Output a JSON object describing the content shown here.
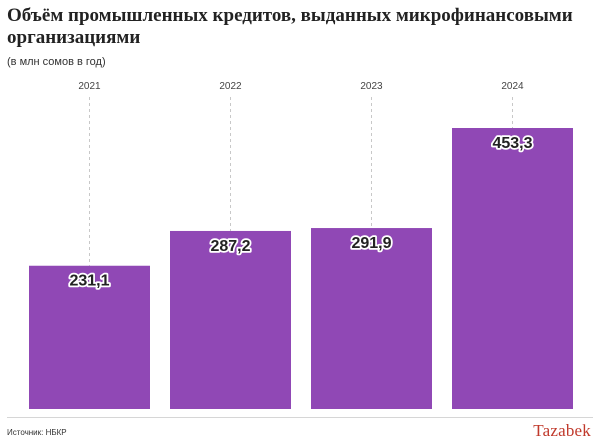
{
  "header": {
    "title": "Объём промышленных кредитов, выданных микрофинансовыми организациями",
    "subtitle": "(в млн сомов в год)"
  },
  "footer": {
    "source": "Источник: НБКР",
    "logo": "Tazabek"
  },
  "colors": {
    "bar": "#9048b5",
    "gridline": "#c8c8c8",
    "label_text": "#222222",
    "label_stroke": "#ffffff",
    "logo": "#c0392b"
  },
  "chart_data": {
    "type": "bar",
    "categories": [
      "2021",
      "2022",
      "2023",
      "2024"
    ],
    "values": [
      231.1,
      287.2,
      291.9,
      453.3
    ],
    "value_labels": [
      "231,1",
      "287,2",
      "291,9",
      "453,3"
    ],
    "title": "Объём промышленных кредитов, выданных микрофинансовыми организациями",
    "subtitle": "(в млн сомов в год)",
    "xlabel": "",
    "ylabel": "",
    "ylim": [
      0,
      500
    ],
    "grid": false,
    "category_axis": "top",
    "legend": "none"
  }
}
